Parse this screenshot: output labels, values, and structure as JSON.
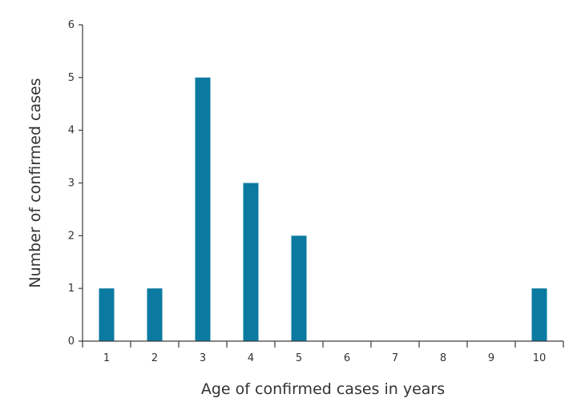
{
  "chart_data": {
    "type": "bar",
    "xlabel": "Age of confirmed cases in years",
    "ylabel": "Number of confirmed cases",
    "categories": [
      "1",
      "2",
      "3",
      "4",
      "5",
      "6",
      "7",
      "8",
      "9",
      "10"
    ],
    "values": [
      1,
      1,
      5,
      3,
      2,
      0,
      0,
      0,
      0,
      1
    ],
    "ylim": [
      0,
      6
    ],
    "yticks": [
      "0",
      "1",
      "2",
      "3",
      "4",
      "5",
      "6"
    ],
    "grid": false,
    "bar_color": "#0a7aa0"
  }
}
